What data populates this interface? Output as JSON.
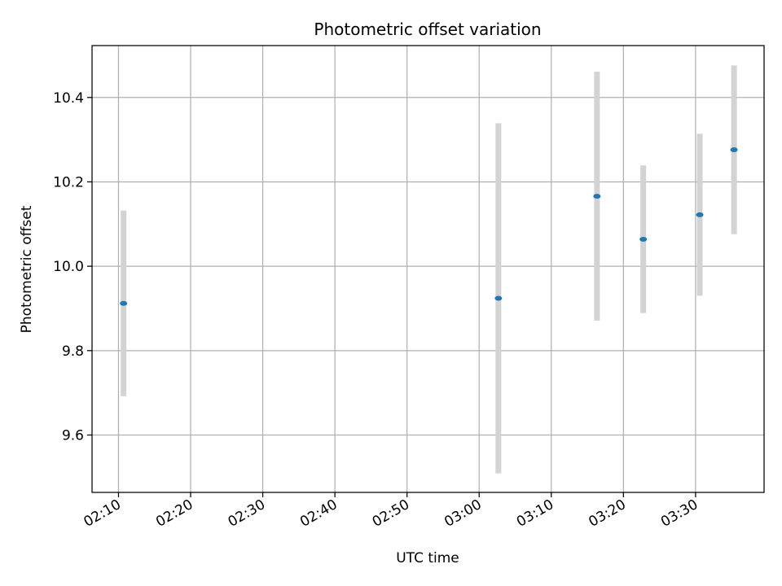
{
  "chart_data": {
    "type": "scatter",
    "title": "Photometric offset variation",
    "xlabel": "UTC time",
    "ylabel": "Photometric offset",
    "x_ticks": [
      "02:10",
      "02:20",
      "02:30",
      "02:40",
      "02:50",
      "03:00",
      "03:10",
      "03:20",
      "03:30"
    ],
    "xlim": [
      "02:06:20",
      "03:39:30"
    ],
    "y_ticks": [
      "9.6",
      "9.8",
      "10.0",
      "10.2",
      "10.4"
    ],
    "ylim": [
      9.464,
      10.523
    ],
    "grid": true,
    "marker_color": "#1f77b4",
    "errorbar_color": "#d3d3d3",
    "points": [
      {
        "x": "02:10:42",
        "y": 9.912,
        "err": 0.22
      },
      {
        "x": "03:02:40",
        "y": 9.924,
        "err": 0.415
      },
      {
        "x": "03:16:20",
        "y": 10.166,
        "err": 0.295
      },
      {
        "x": "03:22:45",
        "y": 10.064,
        "err": 0.175
      },
      {
        "x": "03:30:35",
        "y": 10.122,
        "err": 0.192
      },
      {
        "x": "03:35:20",
        "y": 10.276,
        "err": 0.2
      }
    ]
  }
}
